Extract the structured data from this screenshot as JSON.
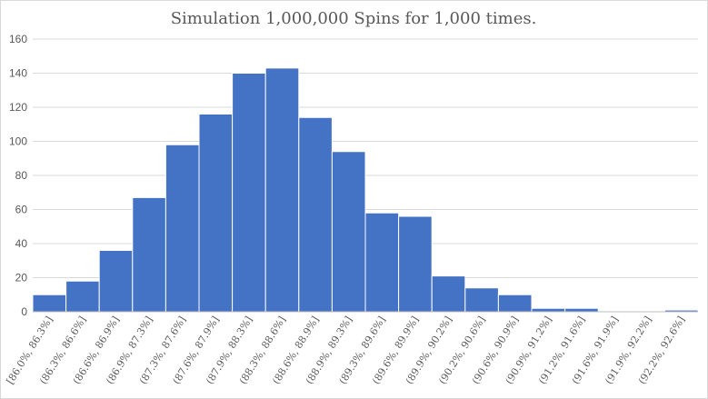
{
  "chart_data": {
    "type": "bar",
    "title": "Simulation 1,000,000 Spins for 1,000 times.",
    "categories": [
      "[86.0%, 86.3%]",
      "(86.3%, 86.6%]",
      "(86.6%, 86.9%]",
      "(86.9%, 87.3%]",
      "(87.3%, 87.6%]",
      "(87.6%, 87.9%]",
      "(87.9%, 88.3%]",
      "(88.3%, 88.6%]",
      "(88.6%, 88.9%]",
      "(88.9%, 89.3%]",
      "(89.3%, 89.6%]",
      "(89.6%, 89.9%]",
      "(89.9%, 90.2%]",
      "(90.2%, 90.6%]",
      "(90.6%, 90.9%]",
      "(90.9%, 91.2%]",
      "(91.2%, 91.6%]",
      "(91.6%, 91.9%]",
      "(91.9%, 92.2%]",
      "(92.2%, 92.6%]"
    ],
    "values": [
      10,
      18,
      36,
      67,
      98,
      116,
      140,
      143,
      114,
      94,
      58,
      56,
      21,
      14,
      10,
      2,
      2,
      0,
      0,
      1
    ],
    "ylim": [
      0,
      160
    ],
    "yticks": [
      0,
      20,
      40,
      60,
      80,
      100,
      120,
      140,
      160
    ],
    "grid": true,
    "legend": "none",
    "bar_color": "#4472C4"
  }
}
